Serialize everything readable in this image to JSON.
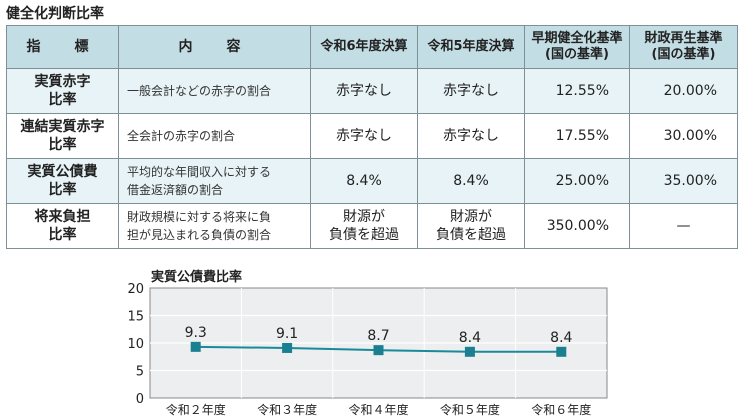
{
  "page_title": "健全化判断比率",
  "table": {
    "headers": [
      "指　標",
      "内　容",
      "令和6年度決算",
      "令和5年度決算",
      "早期健全化基準\n(国の基準)",
      "財政再生基準\n(国の基準)"
    ],
    "rows": [
      {
        "indicator": "実質赤字\n比率",
        "description": "一般会計などの赤字の割合",
        "r6": "赤字なし",
        "r5": "赤字なし",
        "early": "12.55%",
        "rebuild": "20.00%"
      },
      {
        "indicator": "連結実質赤字\n比率",
        "description": "全会計の赤字の割合",
        "r6": "赤字なし",
        "r5": "赤字なし",
        "early": "17.55%",
        "rebuild": "30.00%"
      },
      {
        "indicator": "実質公債費\n比率",
        "description": "平均的な年間収入に対する\n借金返済額の割合",
        "r6": "8.4%",
        "r5": "8.4%",
        "early": "25.00%",
        "rebuild": "35.00%"
      },
      {
        "indicator": "将来負担\n比率",
        "description": "財政規模に対する将来に負\n担が見込まれる負債の割合",
        "r6": "財源が\n負債を超過",
        "r5": "財源が\n負債を超過",
        "early": "350.00%",
        "rebuild": "—"
      }
    ]
  },
  "chart_data": {
    "type": "line",
    "title": "実質公債費比率",
    "categories": [
      "令和２年度",
      "令和３年度",
      "令和４年度",
      "令和５年度",
      "令和６年度"
    ],
    "values": [
      9.3,
      9.1,
      8.7,
      8.4,
      8.4
    ],
    "data_labels": [
      "9.3",
      "9.1",
      "8.7",
      "8.4",
      "8.4"
    ],
    "ylim": [
      0,
      20
    ],
    "yticks": [
      "0",
      "5",
      "10",
      "15",
      "20"
    ],
    "grid": true,
    "colors": {
      "line": "#1a8a9a",
      "marker": "#1a7f90",
      "plot_bg": "#eceeef",
      "grid": "#ffffff"
    }
  }
}
